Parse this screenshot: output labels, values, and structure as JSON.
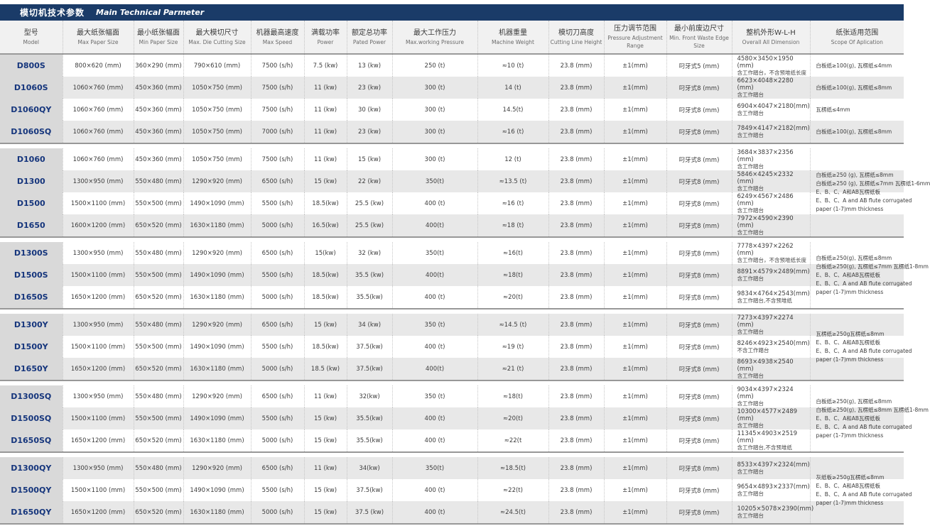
{
  "title": {
    "zh": "模切机技术参数",
    "en": "Main Technical Parmeter"
  },
  "columns": [
    {
      "zh": "型号",
      "en": "Model"
    },
    {
      "zh": "最大纸张幅面",
      "en": "Max Paper Size"
    },
    {
      "zh": "最小纸张幅面",
      "en": "Min Paper Size"
    },
    {
      "zh": "最大模切尺寸",
      "en": "Max. Die Cutting Size"
    },
    {
      "zh": "机器最高速度",
      "en": "Max Speed"
    },
    {
      "zh": "满载功率",
      "en": "Power"
    },
    {
      "zh": "额定总功率",
      "en": "Pated Power"
    },
    {
      "zh": "最大工作压力",
      "en": "Max.working Pressure"
    },
    {
      "zh": "机器重量",
      "en": "Machine Weight"
    },
    {
      "zh": "模切刀高度",
      "en": "Cutting Line Height"
    },
    {
      "zh": "压力调节范围",
      "en": "Pressure Adjustment Range"
    },
    {
      "zh": "最小前废边尺寸",
      "en": "Min. Front Waste Edge Size"
    },
    {
      "zh": "整机外形W-L-H",
      "en": "Overall All Dimension"
    },
    {
      "zh": "纸张适用范围",
      "en": "Scope Of Aplication"
    }
  ],
  "sections": [
    {
      "rows": [
        {
          "model": "D800S",
          "values": [
            "800×620 (mm)",
            "360×290 (mm)",
            "790×610 (mm)",
            "7500 (s/h)",
            "7.5 (kw)",
            "13 (kw)",
            "250 (t)",
            "≈10 (t)",
            "23.8 (mm)",
            "±1(mm)",
            "叼牙式5 (mm)"
          ],
          "dim": "4580×3450×1950 (mm)",
          "dim_note": "含工作踏台，不含预堆纸长度",
          "scope": "白板纸≥100(g), 瓦楞纸≤4mm"
        },
        {
          "model": "D1060S",
          "values": [
            "1060×760 (mm)",
            "450×360 (mm)",
            "1050×750 (mm)",
            "7500 (s/h)",
            "11 (kw)",
            "23 (kw)",
            "300 (t)",
            "14 (t)",
            "23.8 (mm)",
            "±1(mm)",
            "叼牙式8 (mm)"
          ],
          "dim": "6623×4048×2280 (mm)",
          "dim_note": "含工作踏台",
          "scope": "白板纸≥100(g), 瓦楞纸≤8mm"
        },
        {
          "model": "D1060QY",
          "values": [
            "1060×760 (mm)",
            "450×360 (mm)",
            "1050×750 (mm)",
            "7500 (s/h)",
            "11 (kw)",
            "30 (kw)",
            "300 (t)",
            "14.5(t)",
            "23.8 (mm)",
            "±1(mm)",
            "叼牙式8 (mm)"
          ],
          "dim": "6904×4047×2180(mm)",
          "dim_note": "含工作踏台",
          "scope": "瓦楞纸≤4mm"
        },
        {
          "model": "D1060SQ",
          "values": [
            "1060×760 (mm)",
            "450×360 (mm)",
            "1050×750 (mm)",
            "7000 (s/h)",
            "11 (kw)",
            "23 (kw)",
            "300 (t)",
            "≈16 (t)",
            "23.8 (mm)",
            "±1(mm)",
            "叼牙式8 (mm)"
          ],
          "dim": "7849×4147×2182(mm)",
          "dim_note": "含工作踏台",
          "scope": "白板纸≥100(g), 瓦楞纸≤8mm"
        }
      ]
    },
    {
      "scope": [
        "白板纸≥250 (g), 瓦楞纸≤8mm",
        "白板纸≥250 (g), 瓦楞纸≤7mm  瓦楞纸1-6mm",
        "E、B、C、A和AB瓦楞纸板",
        "E、B、C、A and AB flute corrugated",
        "paper (1-7)mm thickness"
      ],
      "rows": [
        {
          "model": "D1060",
          "values": [
            "1060×760 (mm)",
            "450×360 (mm)",
            "1050×750 (mm)",
            "7500 (s/h)",
            "11 (kw)",
            "15 (kw)",
            "300 (t)",
            "12 (t)",
            "23.8 (mm)",
            "±1(mm)",
            "叼牙式8 (mm)"
          ],
          "dim": "3684×3837×2356 (mm)",
          "dim_note": "含工作踏台"
        },
        {
          "model": "D1300",
          "values": [
            "1300×950 (mm)",
            "550×480 (mm)",
            "1290×920 (mm)",
            "6500 (s/h)",
            "15 (kw)",
            "22 (kw)",
            "350(t)",
            "≈13.5 (t)",
            "23.8 (mm)",
            "±1(mm)",
            "叼牙式8 (mm)"
          ],
          "dim": "5846×4245×2332 (mm)",
          "dim_note": "含工作踏台"
        },
        {
          "model": "D1500",
          "values": [
            "1500×1100 (mm)",
            "550×500 (mm)",
            "1490×1090 (mm)",
            "5500 (s/h)",
            "18.5(kw)",
            "25.5 (kw)",
            "400 (t)",
            "≈16 (t)",
            "23.8 (mm)",
            "±1(mm)",
            "叼牙式8 (mm)"
          ],
          "dim": "6249×4567×2486 (mm)",
          "dim_note": "含工作踏台"
        },
        {
          "model": "D1650",
          "values": [
            "1600×1200 (mm)",
            "650×520 (mm)",
            "1630×1180 (mm)",
            "5000 (s/h)",
            "16.5(kw)",
            "25.5 (kw)",
            "400(t)",
            "≈18 (t)",
            "23.8 (mm)",
            "±1(mm)",
            "叼牙式8 (mm)"
          ],
          "dim": "7972×4590×2390 (mm)",
          "dim_note": "含工作踏台"
        }
      ]
    },
    {
      "scope": [
        "白板纸≥250(g), 瓦楞纸≤8mm",
        "白板纸≥250(g), 瓦楞纸≤7mm  瓦楞纸1-8mm",
        "E、B、C、A和AB瓦楞纸板",
        "E、B、C、A and AB flute corrugated",
        "paper (1-7)mm thickness"
      ],
      "rows": [
        {
          "model": "D1300S",
          "values": [
            "1300×950 (mm)",
            "550×480 (mm)",
            "1290×920 (mm)",
            "6500 (s/h)",
            "15(kw)",
            "32 (kw)",
            "350(t)",
            "≈16(t)",
            "23.8 (mm)",
            "±1(mm)",
            "叼牙式8 (mm)"
          ],
          "dim": "7778×4397×2262 (mm)",
          "dim_note": "含工作踏台，不含预堆纸长度"
        },
        {
          "model": "D1500S",
          "values": [
            "1500×1100 (mm)",
            "550×500 (mm)",
            "1490×1090 (mm)",
            "5500 (s/h)",
            "18.5(kw)",
            "35.5 (kw)",
            "400(t)",
            "≈18(t)",
            "23.8 (mm)",
            "±1(mm)",
            "叼牙式8 (mm)"
          ],
          "dim": "8891×4579×2489(mm)",
          "dim_note": "含工作踏台"
        },
        {
          "model": "D1650S",
          "values": [
            "1650×1200 (mm)",
            "650×520 (mm)",
            "1630×1180 (mm)",
            "5000 (s/h)",
            "18.5(kw)",
            "35.5(kw)",
            "400 (t)",
            "≈20(t)",
            "23.8 (mm)",
            "±1(mm)",
            "叼牙式8 (mm)"
          ],
          "dim": "9834×4764×2543(mm)",
          "dim_note": "含工作踏台,不含预堆纸"
        }
      ]
    },
    {
      "scope": [
        "瓦楞纸≥250g瓦楞纸≤8mm",
        "E、B、C、A和AB瓦楞纸板",
        "E、B、C、A and AB flute corrugated",
        "paper (1-7)mm thickness"
      ],
      "rows": [
        {
          "model": "D1300Y",
          "values": [
            "1300×950 (mm)",
            "550×480 (mm)",
            "1290×920 (mm)",
            "6500 (s/h)",
            "15 (kw)",
            "34 (kw)",
            "350 (t)",
            "≈14.5 (t)",
            "23.8 (mm)",
            "±1(mm)",
            "叼牙式8 (mm)"
          ],
          "dim": "7273×4397×2274 (mm)",
          "dim_note": "含工作踏台"
        },
        {
          "model": "D1500Y",
          "values": [
            "1500×1100 (mm)",
            "550×500 (mm)",
            "1490×1090 (mm)",
            "5500 (s/h)",
            "18.5(kw)",
            "37.5(kw)",
            "400 (t)",
            "≈19 (t)",
            "23.8 (mm)",
            "±1(mm)",
            "叼牙式8 (mm)"
          ],
          "dim": "8246×4923×2540(mm)",
          "dim_note": "不含工作踏台"
        },
        {
          "model": "D1650Y",
          "values": [
            "1650×1200 (mm)",
            "650×520 (mm)",
            "1630×1180 (mm)",
            "5000 (s/h)",
            "18.5 (kw)",
            "37.5(kw)",
            "400(t)",
            "≈21 (t)",
            "23.8 (mm)",
            "±1(mm)",
            "叼牙式8 (mm)"
          ],
          "dim": "8693×4938×2540 (mm)",
          "dim_note": "含工作踏台"
        }
      ]
    },
    {
      "scope": [
        "白板纸≥250(g), 瓦楞纸≤8mm",
        "白板纸≥250(g), 瓦楞纸≤8mm  瓦楞纸1-8mm",
        "E、B、C、A和AB瓦楞纸板",
        "E、B、C、A and AB flute corrugated",
        "paper (1-7)mm thickness"
      ],
      "rows": [
        {
          "model": "D1300SQ",
          "values": [
            "1300×950 (mm)",
            "550×480 (mm)",
            "1290×920 (mm)",
            "6500 (s/h)",
            "11 (kw)",
            "32(kw)",
            "350 (t)",
            "≈18(t)",
            "23.8 (mm)",
            "±1(mm)",
            "叼牙式8 (mm)"
          ],
          "dim": "9034×4397×2324 (mm)",
          "dim_note": "含工作踏台"
        },
        {
          "model": "D1500SQ",
          "values": [
            "1500×1100 (mm)",
            "550×500 (mm)",
            "1490×1090 (mm)",
            "5500 (s/h)",
            "15 (kw)",
            "35.5(kw)",
            "400 (t)",
            "≈20(t)",
            "23.8 (mm)",
            "±1(mm)",
            "叼牙式8 (mm)"
          ],
          "dim": "10300×4577×2489 (mm)",
          "dim_note": "含工作踏台"
        },
        {
          "model": "D1650SQ",
          "values": [
            "1650×1200 (mm)",
            "650×520 (mm)",
            "1630×1180 (mm)",
            "5000 (s/h)",
            "15 (kw)",
            "35.5(kw)",
            "400 (t)",
            "≈22(t",
            "23.8 (mm)",
            "±1(mm)",
            "叼牙式8 (mm)"
          ],
          "dim": "11345×4903×2519 (mm)",
          "dim_note": "含工作踏台,不含预堆纸"
        }
      ]
    },
    {
      "scope": [
        "灰纸板≥250g瓦楞纸≤8mm",
        "E、B、C、A和AB瓦楞纸板",
        "E、B、C、A and AB flute corrugated",
        "paper (1-7)mm thickness"
      ],
      "rows": [
        {
          "model": "D1300QY",
          "values": [
            "1300×950 (mm)",
            "550×480 (mm)",
            "1290×920 (mm)",
            "6500 (s/h)",
            "11 (kw)",
            "34(kw)",
            "350(t)",
            "≈18.5(t)",
            "23.8 (mm)",
            "±1(mm)",
            "叼牙式8 (mm)"
          ],
          "dim": "8533×4397×2324(mm)",
          "dim_note": "含工作踏台"
        },
        {
          "model": "D1500QY",
          "values": [
            "1500×1100 (mm)",
            "550×500 (mm)",
            "1490×1090 (mm)",
            "5500 (s/h)",
            "15 (kw)",
            "37.5(kw)",
            "400 (t)",
            "≈22(t)",
            "23.8 (mm)",
            "±1(mm)",
            "叼牙式8 (mm)"
          ],
          "dim": "9654×4893×2337(mm)",
          "dim_note": "含工作踏台"
        },
        {
          "model": "D1650QY",
          "values": [
            "1650×1200 (mm)",
            "650×520 (mm)",
            "1630×1180 (mm)",
            "5000 (s/h)",
            "15 (kw)",
            "37.5 (kw)",
            "400 (t)",
            "≈24.5(t)",
            "23.8 (mm)",
            "±1(mm)",
            "叼牙式8 (mm)"
          ],
          "dim": "10205×5078×2390(mm)",
          "dim_note": "含工作踏台"
        }
      ]
    }
  ],
  "colors": {
    "title_bar": "#1a3b68",
    "model_text": "#15357c",
    "stripe": "#e8e8e8",
    "model_cell_bg": "#d9d9d9"
  }
}
